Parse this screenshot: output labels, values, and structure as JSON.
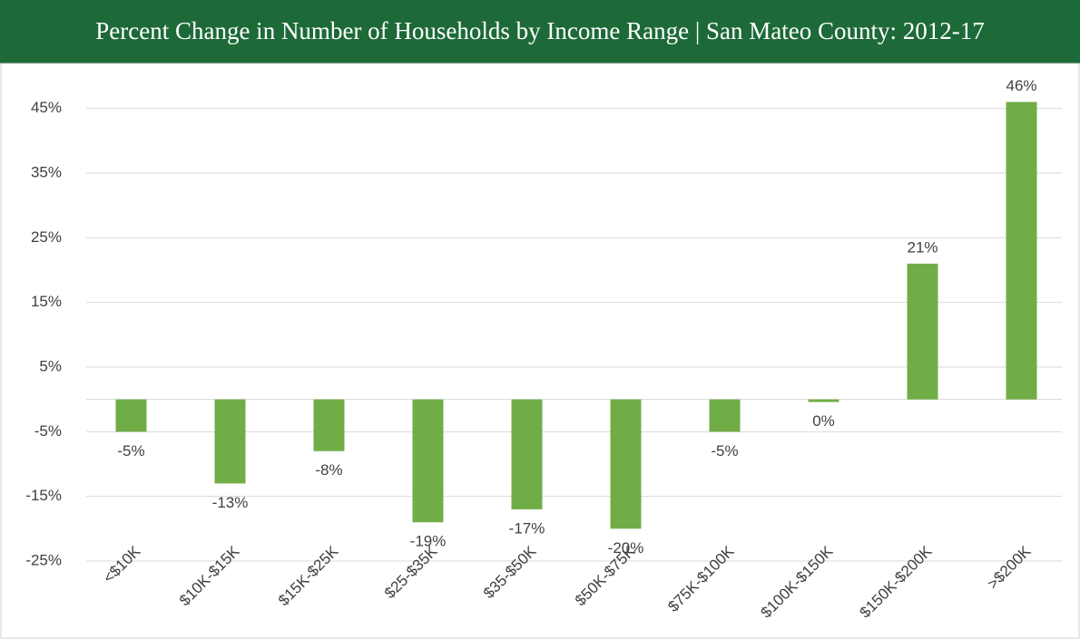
{
  "chart_data": {
    "type": "bar",
    "title": "Percent Change in Number of Households by Income Range | San Mateo County: 2012-17",
    "categories": [
      "<$10K",
      "$10K-$15K",
      "$15K-$25K",
      "$25-$35K",
      "$35-$50K",
      "$50K-$75K",
      "$75K-$100K",
      "$100K-$150K",
      "$150K-$200K",
      ">$200K"
    ],
    "values": [
      -5,
      -13,
      -8,
      -19,
      -17,
      -20,
      -5,
      -0.4,
      21,
      46
    ],
    "value_labels": [
      "-5%",
      "-13%",
      "-8%",
      "-19%",
      "-17%",
      "-20%",
      "-5%",
      "0%",
      "21%",
      "46%"
    ],
    "color": "#70ad47",
    "ylim": [
      -25,
      50
    ],
    "yticks": [
      {
        "value": -25,
        "label": "-25%"
      },
      {
        "value": -15,
        "label": "-15%"
      },
      {
        "value": -5,
        "label": "-5%"
      },
      {
        "value": 5,
        "label": "5%"
      },
      {
        "value": 15,
        "label": "15%"
      },
      {
        "value": 25,
        "label": "25%"
      },
      {
        "value": 35,
        "label": "35%"
      },
      {
        "value": 45,
        "label": "45%"
      }
    ],
    "grid": true
  }
}
